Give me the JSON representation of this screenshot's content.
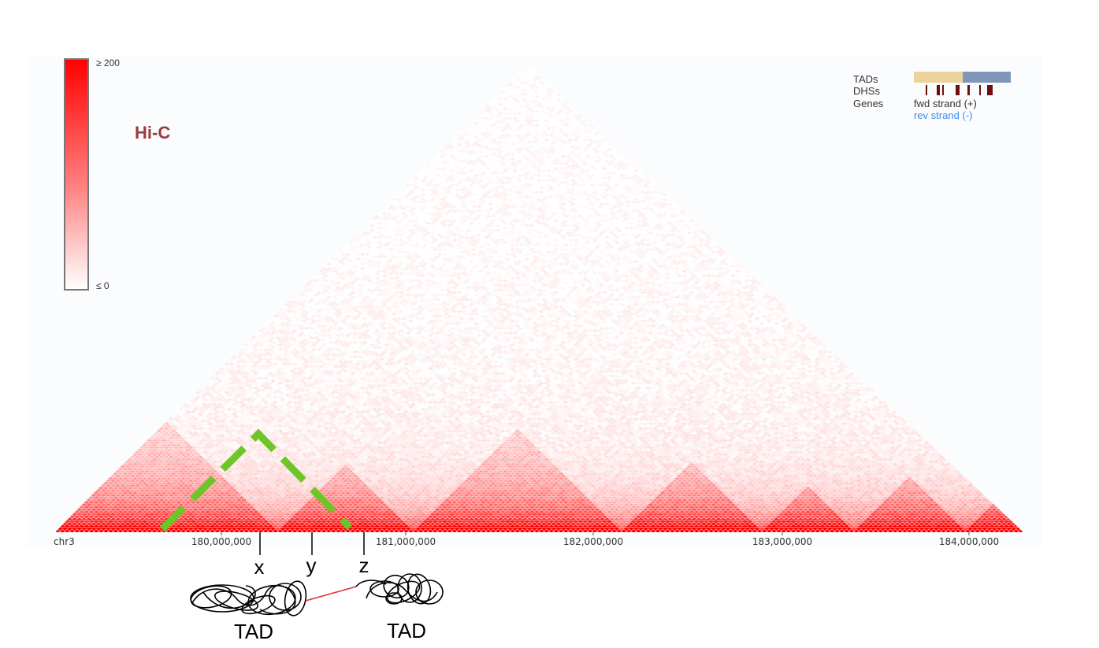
{
  "colors": {
    "heat_max": "#ff0000",
    "heat_min": "#ffffff",
    "hic_label": "#9a3b3b",
    "tad_highlight": "#6dc628",
    "tad_band_1": "#ecd39b",
    "tad_band_2": "#7f97b9",
    "dhs_mark": "#6b0f0f",
    "rev_strand": "#3a8ee6",
    "tether": "#e23030"
  },
  "colorbar": {
    "max_label": "≥ 200",
    "min_label": "≤ 0"
  },
  "title": "Hi-C",
  "tracks_legend": {
    "tads_label": "TADs",
    "dhss_label": "DHSs",
    "genes_label": "Genes",
    "fwd_strand": "fwd strand (+)",
    "rev_strand": "rev strand (-)"
  },
  "axis": {
    "chrom": "chr3",
    "ticks": [
      "180,000,000",
      "181,000,000",
      "182,000,000",
      "183,000,000",
      "184,000,000"
    ]
  },
  "markers": [
    "x",
    "y",
    "z"
  ],
  "tad_labels": [
    "TAD",
    "TAD"
  ]
}
